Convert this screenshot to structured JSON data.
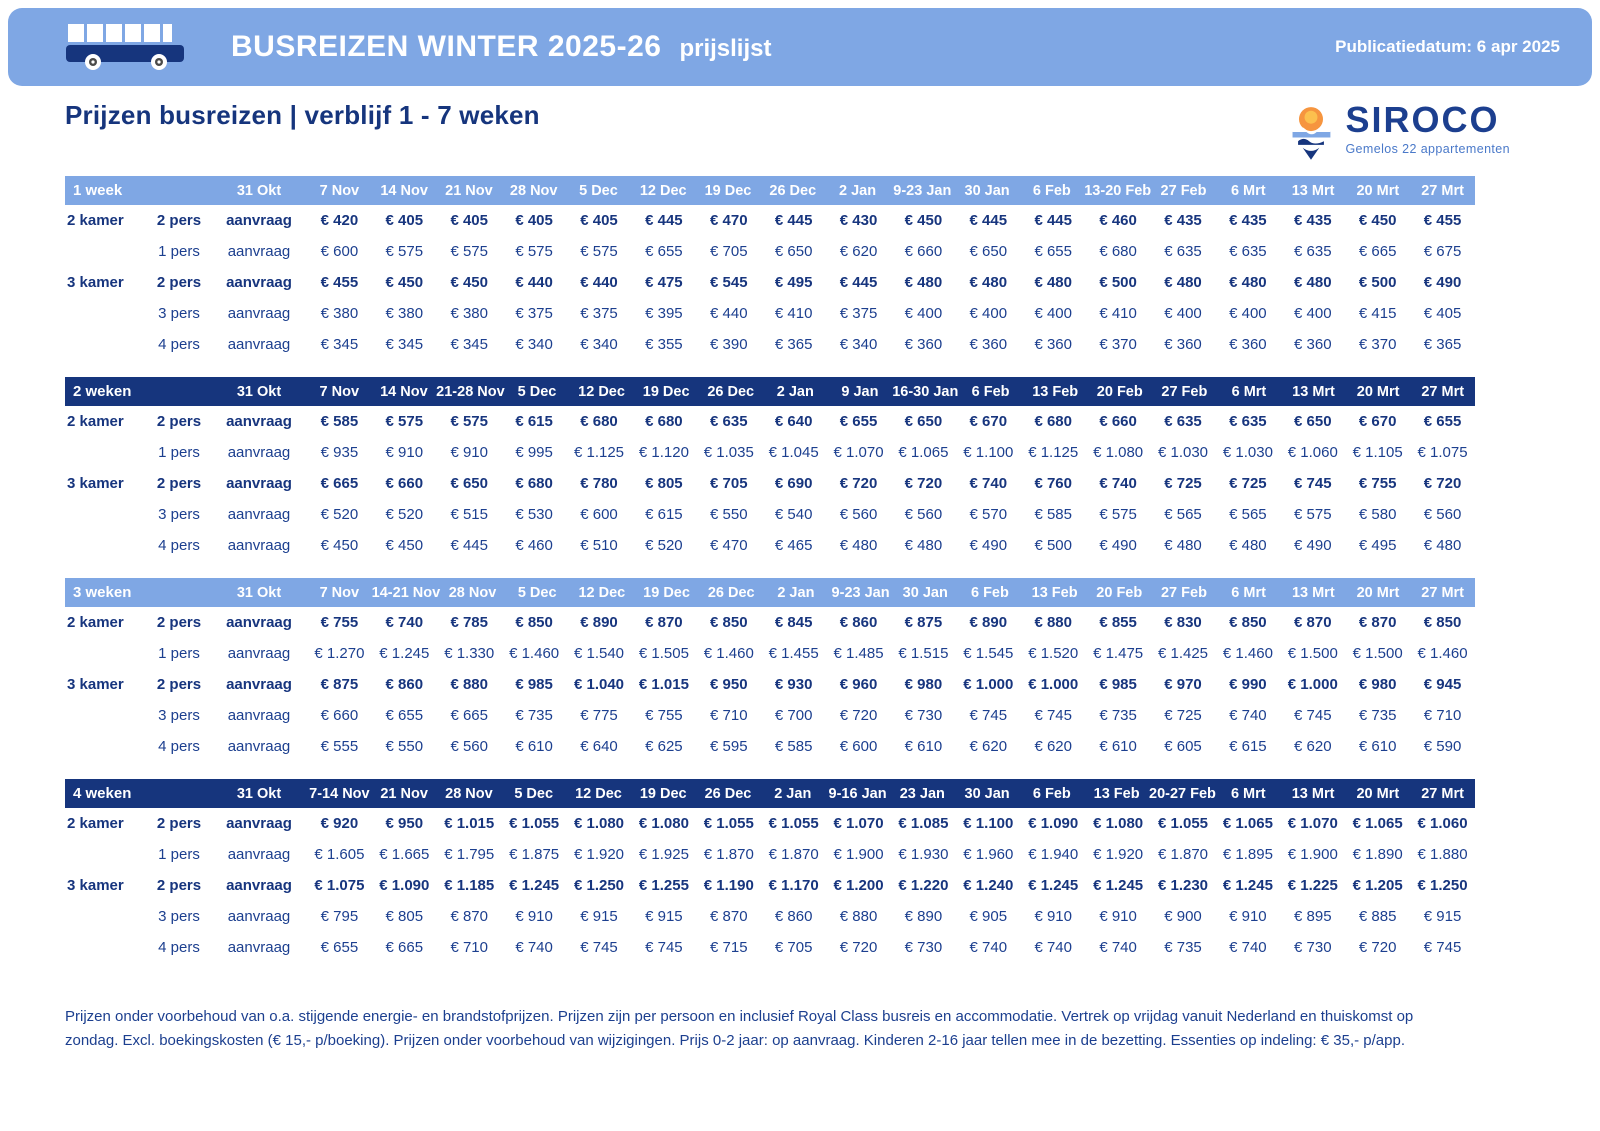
{
  "banner": {
    "title": "BUSREIZEN WINTER 2025-26",
    "subtitle": "prijslijst",
    "publication": "Publicatiedatum: 6 apr 2025"
  },
  "page_title": "Prijzen busreizen | verblijf 1 - 7 weken",
  "logo": {
    "name": "SIROCO",
    "tagline": "Gemelos 22 appartementen"
  },
  "colors": {
    "banner_blue": "#7FA7E4",
    "header_dark_navy": "#16357D",
    "text_navy": "#1C3F8F",
    "sun_orange": "#F6953F",
    "sun_core": "#FCC04E"
  },
  "tables": [
    {
      "period": "1 week",
      "header_style": "light",
      "columns": [
        "31 Okt",
        "7 Nov",
        "14 Nov",
        "21 Nov",
        "28 Nov",
        "5 Dec",
        "12 Dec",
        "19 Dec",
        "26 Dec",
        "2 Jan",
        "9-23 Jan",
        "30 Jan",
        "6 Feb",
        "13-20 Feb",
        "27 Feb",
        "6 Mrt",
        "13 Mrt",
        "20 Mrt",
        "27 Mrt"
      ],
      "rows": [
        {
          "room": "2 kamer",
          "pers": "2 pers",
          "bold": true,
          "values": [
            "aanvraag",
            "€ 420",
            "€ 405",
            "€ 405",
            "€ 405",
            "€ 405",
            "€ 445",
            "€ 470",
            "€ 445",
            "€ 430",
            "€ 450",
            "€ 445",
            "€ 445",
            "€ 460",
            "€ 435",
            "€ 435",
            "€ 435",
            "€ 450",
            "€ 455"
          ]
        },
        {
          "room": "",
          "pers": "1 pers",
          "bold": false,
          "values": [
            "aanvraag",
            "€ 600",
            "€ 575",
            "€ 575",
            "€ 575",
            "€ 575",
            "€ 655",
            "€ 705",
            "€ 650",
            "€ 620",
            "€ 660",
            "€ 650",
            "€ 655",
            "€ 680",
            "€ 635",
            "€ 635",
            "€ 635",
            "€ 665",
            "€ 675"
          ]
        },
        {
          "room": "3 kamer",
          "pers": "2 pers",
          "bold": true,
          "values": [
            "aanvraag",
            "€ 455",
            "€ 450",
            "€ 450",
            "€ 440",
            "€ 440",
            "€ 475",
            "€ 545",
            "€ 495",
            "€ 445",
            "€ 480",
            "€ 480",
            "€ 480",
            "€ 500",
            "€ 480",
            "€ 480",
            "€ 480",
            "€ 500",
            "€ 490"
          ]
        },
        {
          "room": "",
          "pers": "3 pers",
          "bold": false,
          "values": [
            "aanvraag",
            "€ 380",
            "€ 380",
            "€ 380",
            "€ 375",
            "€ 375",
            "€ 395",
            "€ 440",
            "€ 410",
            "€ 375",
            "€ 400",
            "€ 400",
            "€ 400",
            "€ 410",
            "€ 400",
            "€ 400",
            "€ 400",
            "€ 415",
            "€ 405"
          ]
        },
        {
          "room": "",
          "pers": "4 pers",
          "bold": false,
          "values": [
            "aanvraag",
            "€ 345",
            "€ 345",
            "€ 345",
            "€ 340",
            "€ 340",
            "€ 355",
            "€ 390",
            "€ 365",
            "€ 340",
            "€ 360",
            "€ 360",
            "€ 360",
            "€ 370",
            "€ 360",
            "€ 360",
            "€ 360",
            "€ 370",
            "€ 365"
          ]
        }
      ]
    },
    {
      "period": "2 weken",
      "header_style": "dark",
      "columns": [
        "31 Okt",
        "7 Nov",
        "14 Nov",
        "21-28 Nov",
        "5 Dec",
        "12 Dec",
        "19 Dec",
        "26 Dec",
        "2 Jan",
        "9 Jan",
        "16-30 Jan",
        "6 Feb",
        "13 Feb",
        "20 Feb",
        "27 Feb",
        "6 Mrt",
        "13 Mrt",
        "20 Mrt",
        "27 Mrt"
      ],
      "rows": [
        {
          "room": "2 kamer",
          "pers": "2 pers",
          "bold": true,
          "values": [
            "aanvraag",
            "€ 585",
            "€ 575",
            "€ 575",
            "€ 615",
            "€ 680",
            "€ 680",
            "€ 635",
            "€ 640",
            "€ 655",
            "€ 650",
            "€ 670",
            "€ 680",
            "€ 660",
            "€ 635",
            "€ 635",
            "€ 650",
            "€ 670",
            "€ 655"
          ]
        },
        {
          "room": "",
          "pers": "1 pers",
          "bold": false,
          "values": [
            "aanvraag",
            "€ 935",
            "€ 910",
            "€ 910",
            "€ 995",
            "€ 1.125",
            "€ 1.120",
            "€ 1.035",
            "€ 1.045",
            "€ 1.070",
            "€ 1.065",
            "€ 1.100",
            "€ 1.125",
            "€ 1.080",
            "€ 1.030",
            "€ 1.030",
            "€ 1.060",
            "€ 1.105",
            "€ 1.075"
          ]
        },
        {
          "room": "3 kamer",
          "pers": "2 pers",
          "bold": true,
          "values": [
            "aanvraag",
            "€ 665",
            "€ 660",
            "€ 650",
            "€ 680",
            "€ 780",
            "€ 805",
            "€ 705",
            "€ 690",
            "€ 720",
            "€ 720",
            "€ 740",
            "€ 760",
            "€ 740",
            "€ 725",
            "€ 725",
            "€ 745",
            "€ 755",
            "€ 720"
          ]
        },
        {
          "room": "",
          "pers": "3 pers",
          "bold": false,
          "values": [
            "aanvraag",
            "€ 520",
            "€ 520",
            "€ 515",
            "€ 530",
            "€ 600",
            "€ 615",
            "€ 550",
            "€ 540",
            "€ 560",
            "€ 560",
            "€ 570",
            "€ 585",
            "€ 575",
            "€ 565",
            "€ 565",
            "€ 575",
            "€ 580",
            "€ 560"
          ]
        },
        {
          "room": "",
          "pers": "4 pers",
          "bold": false,
          "values": [
            "aanvraag",
            "€ 450",
            "€ 450",
            "€ 445",
            "€ 460",
            "€ 510",
            "€ 520",
            "€ 470",
            "€ 465",
            "€ 480",
            "€ 480",
            "€ 490",
            "€ 500",
            "€ 490",
            "€ 480",
            "€ 480",
            "€ 490",
            "€ 495",
            "€ 480"
          ]
        }
      ]
    },
    {
      "period": "3 weken",
      "header_style": "light",
      "columns": [
        "31 Okt",
        "7 Nov",
        "14-21 Nov",
        "28 Nov",
        "5 Dec",
        "12 Dec",
        "19 Dec",
        "26 Dec",
        "2 Jan",
        "9-23 Jan",
        "30 Jan",
        "6 Feb",
        "13 Feb",
        "20 Feb",
        "27 Feb",
        "6 Mrt",
        "13 Mrt",
        "20 Mrt",
        "27 Mrt"
      ],
      "rows": [
        {
          "room": "2 kamer",
          "pers": "2 pers",
          "bold": true,
          "values": [
            "aanvraag",
            "€ 755",
            "€ 740",
            "€ 785",
            "€ 850",
            "€ 890",
            "€ 870",
            "€ 850",
            "€ 845",
            "€ 860",
            "€ 875",
            "€ 890",
            "€ 880",
            "€ 855",
            "€ 830",
            "€ 850",
            "€ 870",
            "€ 870",
            "€ 850"
          ]
        },
        {
          "room": "",
          "pers": "1 pers",
          "bold": false,
          "values": [
            "aanvraag",
            "€ 1.270",
            "€ 1.245",
            "€ 1.330",
            "€ 1.460",
            "€ 1.540",
            "€ 1.505",
            "€ 1.460",
            "€ 1.455",
            "€ 1.485",
            "€ 1.515",
            "€ 1.545",
            "€ 1.520",
            "€ 1.475",
            "€ 1.425",
            "€ 1.460",
            "€ 1.500",
            "€ 1.500",
            "€ 1.460"
          ]
        },
        {
          "room": "3 kamer",
          "pers": "2 pers",
          "bold": true,
          "values": [
            "aanvraag",
            "€ 875",
            "€ 860",
            "€ 880",
            "€ 985",
            "€ 1.040",
            "€ 1.015",
            "€ 950",
            "€ 930",
            "€ 960",
            "€ 980",
            "€ 1.000",
            "€ 1.000",
            "€ 985",
            "€ 970",
            "€ 990",
            "€ 1.000",
            "€ 980",
            "€ 945"
          ]
        },
        {
          "room": "",
          "pers": "3 pers",
          "bold": false,
          "values": [
            "aanvraag",
            "€ 660",
            "€ 655",
            "€ 665",
            "€ 735",
            "€ 775",
            "€ 755",
            "€ 710",
            "€ 700",
            "€ 720",
            "€ 730",
            "€ 745",
            "€ 745",
            "€ 735",
            "€ 725",
            "€ 740",
            "€ 745",
            "€ 735",
            "€ 710"
          ]
        },
        {
          "room": "",
          "pers": "4 pers",
          "bold": false,
          "values": [
            "aanvraag",
            "€ 555",
            "€ 550",
            "€ 560",
            "€ 610",
            "€ 640",
            "€ 625",
            "€ 595",
            "€ 585",
            "€ 600",
            "€ 610",
            "€ 620",
            "€ 620",
            "€ 610",
            "€ 605",
            "€ 615",
            "€ 620",
            "€ 610",
            "€ 590"
          ]
        }
      ]
    },
    {
      "period": "4 weken",
      "header_style": "dark",
      "columns": [
        "31 Okt",
        "7-14 Nov",
        "21 Nov",
        "28 Nov",
        "5 Dec",
        "12 Dec",
        "19 Dec",
        "26 Dec",
        "2 Jan",
        "9-16 Jan",
        "23 Jan",
        "30 Jan",
        "6 Feb",
        "13 Feb",
        "20-27 Feb",
        "6 Mrt",
        "13 Mrt",
        "20 Mrt",
        "27 Mrt"
      ],
      "rows": [
        {
          "room": "2 kamer",
          "pers": "2 pers",
          "bold": true,
          "values": [
            "aanvraag",
            "€ 920",
            "€ 950",
            "€ 1.015",
            "€ 1.055",
            "€ 1.080",
            "€ 1.080",
            "€ 1.055",
            "€ 1.055",
            "€ 1.070",
            "€ 1.085",
            "€ 1.100",
            "€ 1.090",
            "€ 1.080",
            "€ 1.055",
            "€ 1.065",
            "€ 1.070",
            "€ 1.065",
            "€ 1.060"
          ]
        },
        {
          "room": "",
          "pers": "1 pers",
          "bold": false,
          "values": [
            "aanvraag",
            "€ 1.605",
            "€ 1.665",
            "€ 1.795",
            "€ 1.875",
            "€ 1.920",
            "€ 1.925",
            "€ 1.870",
            "€ 1.870",
            "€ 1.900",
            "€ 1.930",
            "€ 1.960",
            "€ 1.940",
            "€ 1.920",
            "€ 1.870",
            "€ 1.895",
            "€ 1.900",
            "€ 1.890",
            "€ 1.880"
          ]
        },
        {
          "room": "3 kamer",
          "pers": "2 pers",
          "bold": true,
          "values": [
            "aanvraag",
            "€ 1.075",
            "€ 1.090",
            "€ 1.185",
            "€ 1.245",
            "€ 1.250",
            "€ 1.255",
            "€ 1.190",
            "€ 1.170",
            "€ 1.200",
            "€ 1.220",
            "€ 1.240",
            "€ 1.245",
            "€ 1.245",
            "€ 1.230",
            "€ 1.245",
            "€ 1.225",
            "€ 1.205",
            "€ 1.250"
          ]
        },
        {
          "room": "",
          "pers": "3 pers",
          "bold": false,
          "values": [
            "aanvraag",
            "€ 795",
            "€ 805",
            "€ 870",
            "€ 910",
            "€ 915",
            "€ 915",
            "€ 870",
            "€ 860",
            "€ 880",
            "€ 890",
            "€ 905",
            "€ 910",
            "€ 910",
            "€ 900",
            "€ 910",
            "€ 895",
            "€ 885",
            "€ 915"
          ]
        },
        {
          "room": "",
          "pers": "4 pers",
          "bold": false,
          "values": [
            "aanvraag",
            "€ 655",
            "€ 665",
            "€ 710",
            "€ 740",
            "€ 745",
            "€ 745",
            "€ 715",
            "€ 705",
            "€ 720",
            "€ 730",
            "€ 740",
            "€ 740",
            "€ 740",
            "€ 735",
            "€ 740",
            "€ 730",
            "€ 720",
            "€ 745"
          ]
        }
      ]
    }
  ],
  "footer": "Prijzen onder voorbehoud van o.a. stijgende energie- en brandstofprijzen. Prijzen zijn per persoon en inclusief Royal Class busreis en accommodatie. Vertrek op vrijdag vanuit Nederland en thuiskomst op zondag. Excl. boekingskosten (€ 15,- p/boeking). Prijzen onder voorbehoud van wijzigingen. Prijs 0-2 jaar: op aanvraag. Kinderen 2-16 jaar tellen mee in de bezetting. Essenties op indeling: € 35,- p/app."
}
